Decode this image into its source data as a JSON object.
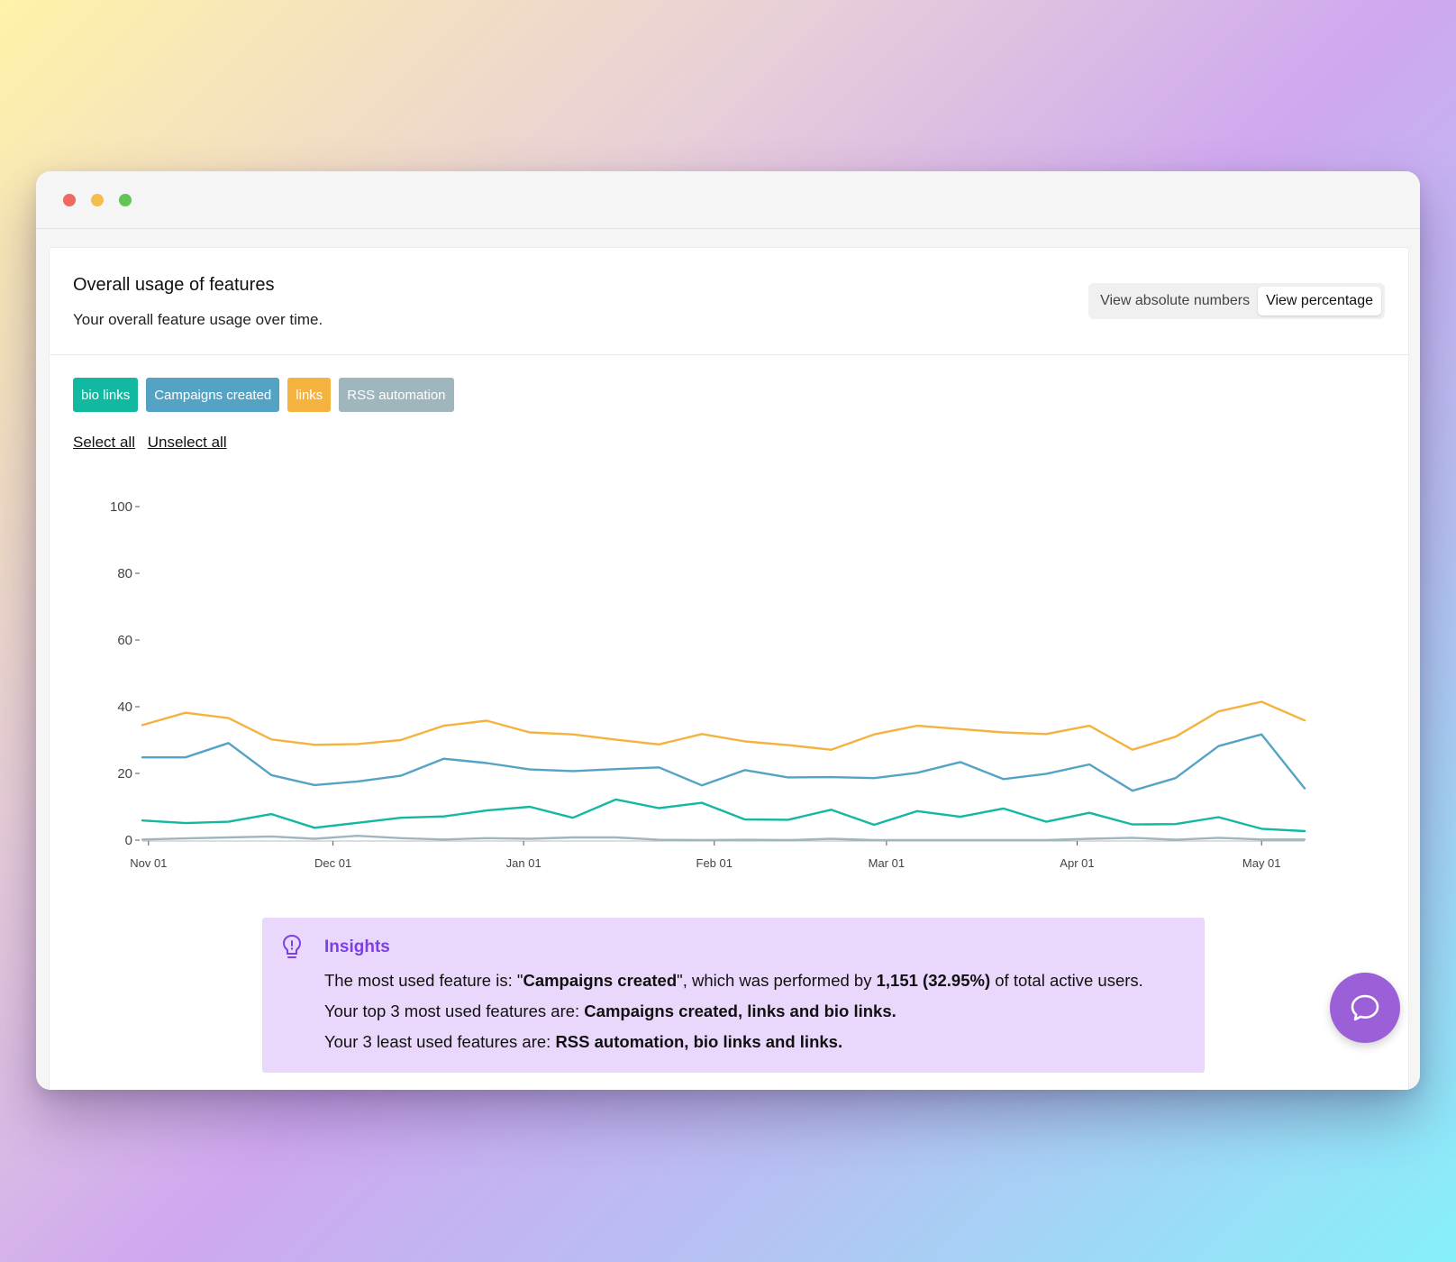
{
  "window": {
    "controls": [
      "close",
      "minimize",
      "maximize"
    ]
  },
  "card": {
    "title": "Overall usage of features",
    "subtitle": "Your overall feature usage over time.",
    "toggle": {
      "absolute_label": "View absolute numbers",
      "percentage_label": "View percentage",
      "active": "percentage"
    }
  },
  "tags": [
    {
      "label": "bio links",
      "color": "#12b8a0"
    },
    {
      "label": "Campaigns created",
      "color": "#55a3c4"
    },
    {
      "label": "links",
      "color": "#f4b23f"
    },
    {
      "label": "RSS automation",
      "color": "#9fb6bd"
    }
  ],
  "selection": {
    "select_all": "Select all",
    "unselect_all": "Unselect all"
  },
  "chart_data": {
    "type": "line",
    "x": [
      "2022-10-31",
      "2022-11-07",
      "2022-11-14",
      "2022-11-21",
      "2022-11-28",
      "2022-12-05",
      "2022-12-12",
      "2022-12-19",
      "2022-12-26",
      "2023-01-02",
      "2023-01-09",
      "2023-01-16",
      "2023-01-23",
      "2023-01-30",
      "2023-02-06",
      "2023-02-13",
      "2023-02-20",
      "2023-02-27",
      "2023-03-06",
      "2023-03-13",
      "2023-03-20",
      "2023-03-27",
      "2023-04-03",
      "2023-04-10",
      "2023-04-17",
      "2023-04-24",
      "2023-05-01",
      "2023-05-08"
    ],
    "xticks": [
      {
        "date": "2022-11-01",
        "label": "Nov 01"
      },
      {
        "date": "2022-12-01",
        "label": "Dec 01"
      },
      {
        "date": "2023-01-01",
        "label": "Jan 01"
      },
      {
        "date": "2023-02-01",
        "label": "Feb 01"
      },
      {
        "date": "2023-03-01",
        "label": "Mar 01"
      },
      {
        "date": "2023-04-01",
        "label": "Apr 01"
      },
      {
        "date": "2023-05-01",
        "label": "May 01"
      }
    ],
    "yticks": [
      0,
      20,
      40,
      60,
      80,
      100
    ],
    "ylim": [
      0,
      100
    ],
    "series": [
      {
        "name": "links",
        "color": "#f4b23f",
        "values": [
          34.5,
          38.2,
          36.6,
          30.2,
          28.6,
          28.8,
          30.0,
          34.3,
          35.8,
          32.3,
          31.7,
          30.1,
          28.7,
          31.8,
          29.6,
          28.5,
          27.1,
          31.7,
          34.3,
          33.3,
          32.3,
          31.8,
          34.3,
          27.1,
          31.0,
          38.6,
          41.5,
          35.9
        ]
      },
      {
        "name": "Campaigns created",
        "color": "#55a3c4",
        "values": [
          24.8,
          24.8,
          29.1,
          19.5,
          16.5,
          17.6,
          19.3,
          24.4,
          23.1,
          21.2,
          20.7,
          21.3,
          21.8,
          16.4,
          21.0,
          18.8,
          18.9,
          18.6,
          20.2,
          23.4,
          18.3,
          19.9,
          22.7,
          14.8,
          18.6,
          28.2,
          31.7,
          15.5
        ]
      },
      {
        "name": "bio links",
        "color": "#12b8a0",
        "values": [
          5.9,
          5.1,
          5.5,
          7.8,
          3.7,
          5.2,
          6.7,
          7.1,
          8.9,
          10.0,
          6.7,
          12.2,
          9.6,
          11.2,
          6.2,
          6.1,
          9.1,
          4.6,
          8.7,
          7.0,
          9.5,
          5.5,
          8.2,
          4.7,
          4.8,
          6.9,
          3.4,
          2.7
        ]
      },
      {
        "name": "RSS automation",
        "color": "#9fb6bd",
        "values": [
          0.2,
          0.5,
          0.8,
          1.1,
          0.4,
          1.3,
          0.6,
          0.2,
          0.6,
          0.4,
          0.8,
          0.8,
          0.1,
          0.0,
          0.1,
          0.0,
          0.4,
          0.0,
          0.0,
          0.0,
          0.0,
          0.0,
          0.4,
          0.7,
          0.1,
          0.7,
          0.2,
          0.2
        ]
      }
    ]
  },
  "insights": {
    "title": "Insights",
    "line1": {
      "prefix": "The most used feature is: \"",
      "feature": "Campaigns created",
      "middle": "\", which was performed by ",
      "stat": "1,151 (32.95%)",
      "suffix": " of total active users."
    },
    "line2": {
      "prefix": "Your top 3 most used features are: ",
      "value": "Campaigns created, links and bio links."
    },
    "line3": {
      "prefix": "Your 3 least used features are: ",
      "value": "RSS automation, bio links and links."
    }
  },
  "chat": {
    "icon": "chat-bubble-icon"
  }
}
